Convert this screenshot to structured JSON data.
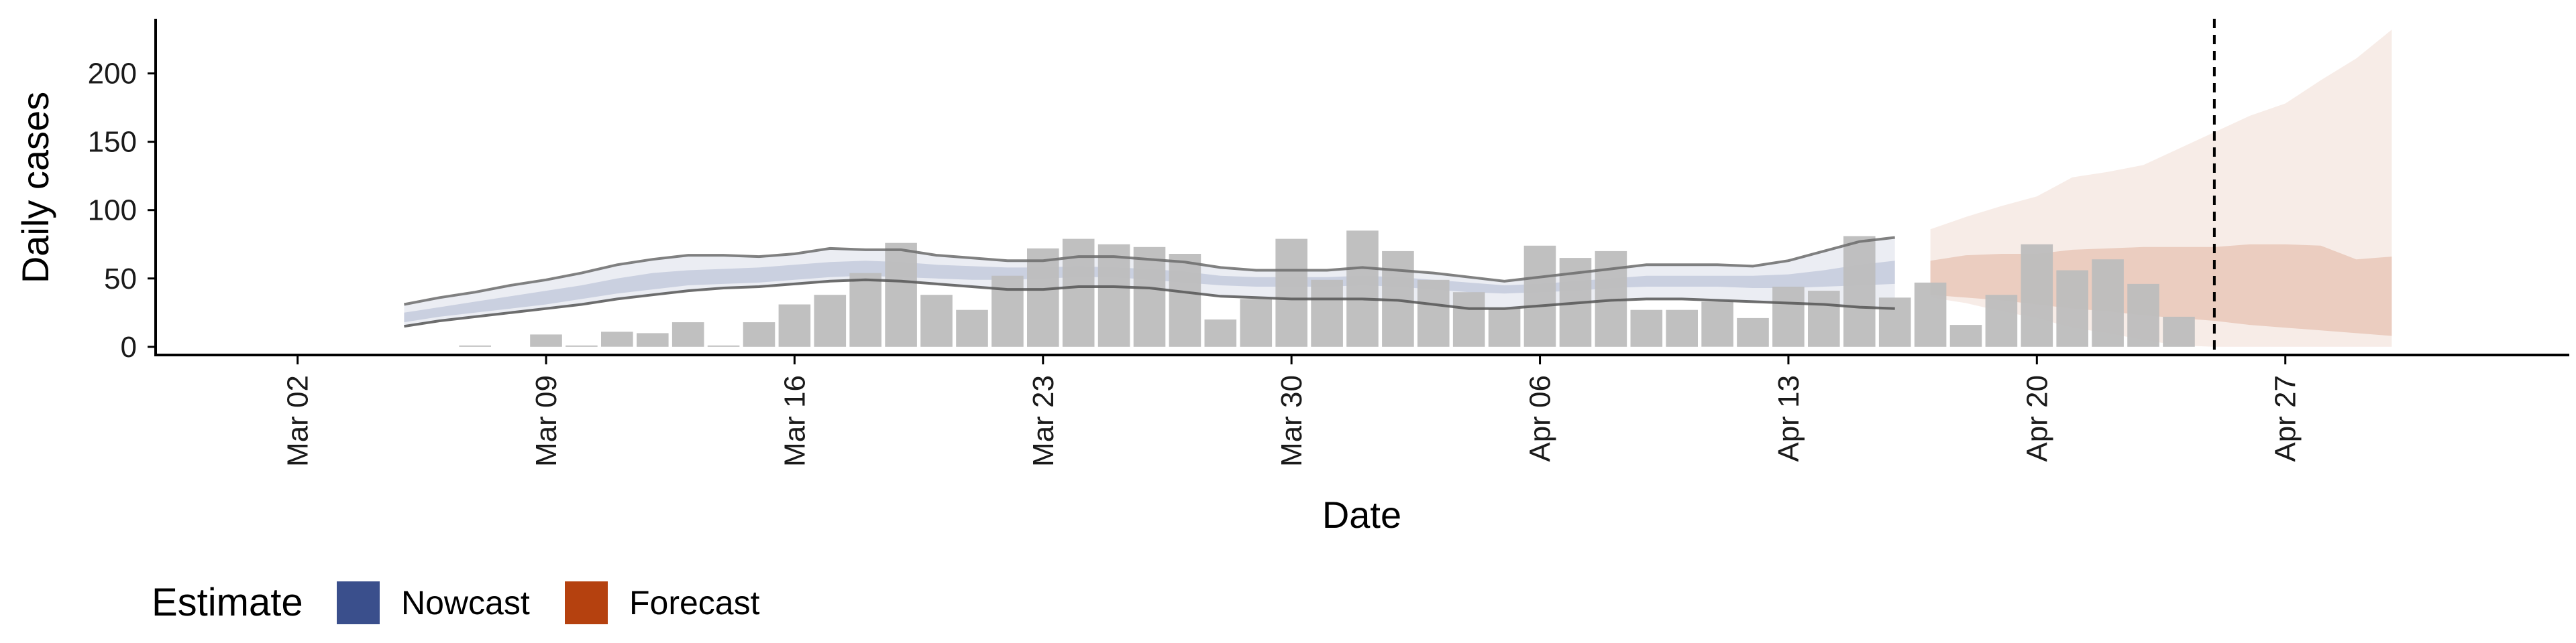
{
  "chart_data": {
    "type": "bar",
    "xlabel": "Date",
    "ylabel": "Daily cases",
    "ylim": [
      -5,
      240
    ],
    "yticks": [
      0,
      50,
      100,
      150,
      200
    ],
    "x_tick_labels": [
      "Mar 02",
      "Mar 09",
      "Mar 16",
      "Mar 23",
      "Mar 30",
      "Apr 06",
      "Apr 13",
      "Apr 20",
      "Apr 27"
    ],
    "x_tick_dates": [
      "2020-03-02",
      "2020-03-09",
      "2020-03-16",
      "2020-03-23",
      "2020-03-30",
      "2020-04-06",
      "2020-04-13",
      "2020-04-20",
      "2020-04-27"
    ],
    "x_range": [
      "2020-02-27",
      "2020-05-05"
    ],
    "reported_cases": {
      "color": "#bdbdbd",
      "dates": [
        "2020-03-07",
        "2020-03-08",
        "2020-03-09",
        "2020-03-10",
        "2020-03-11",
        "2020-03-12",
        "2020-03-13",
        "2020-03-14",
        "2020-03-15",
        "2020-03-16",
        "2020-03-17",
        "2020-03-18",
        "2020-03-19",
        "2020-03-20",
        "2020-03-21",
        "2020-03-22",
        "2020-03-23",
        "2020-03-24",
        "2020-03-25",
        "2020-03-26",
        "2020-03-27",
        "2020-03-28",
        "2020-03-29",
        "2020-03-30",
        "2020-03-31",
        "2020-04-01",
        "2020-04-02",
        "2020-04-03",
        "2020-04-04",
        "2020-04-05",
        "2020-04-06",
        "2020-04-07",
        "2020-04-08",
        "2020-04-09",
        "2020-04-10",
        "2020-04-11",
        "2020-04-12",
        "2020-04-13",
        "2020-04-14",
        "2020-04-15",
        "2020-04-16",
        "2020-04-17",
        "2020-04-18",
        "2020-04-19",
        "2020-04-20",
        "2020-04-21",
        "2020-04-22",
        "2020-04-23",
        "2020-04-24",
        "2020-04-25"
      ],
      "values": [
        1,
        0,
        9,
        1,
        11,
        10,
        18,
        1,
        18,
        31,
        38,
        54,
        76,
        38,
        27,
        52,
        72,
        79,
        75,
        73,
        68,
        20,
        35,
        79,
        49,
        85,
        70,
        49,
        40,
        28,
        74,
        65,
        70,
        27,
        27,
        33,
        21,
        44,
        41,
        81,
        36,
        47,
        16,
        38,
        75,
        56,
        64,
        46,
        22,
        0
      ]
    },
    "series": [
      {
        "name": "Nowcast",
        "color": "#3a4f8c",
        "x": [
          "2020-03-05",
          "2020-03-06",
          "2020-03-07",
          "2020-03-08",
          "2020-03-09",
          "2020-03-10",
          "2020-03-11",
          "2020-03-12",
          "2020-03-13",
          "2020-03-14",
          "2020-03-15",
          "2020-03-16",
          "2020-03-17",
          "2020-03-18",
          "2020-03-19",
          "2020-03-20",
          "2020-03-21",
          "2020-03-22",
          "2020-03-23",
          "2020-03-24",
          "2020-03-25",
          "2020-03-26",
          "2020-03-27",
          "2020-03-28",
          "2020-03-29",
          "2020-03-30",
          "2020-03-31",
          "2020-04-01",
          "2020-04-02",
          "2020-04-03",
          "2020-04-04",
          "2020-04-05",
          "2020-04-06",
          "2020-04-07",
          "2020-04-08",
          "2020-04-09",
          "2020-04-10",
          "2020-04-11",
          "2020-04-12",
          "2020-04-13",
          "2020-04-14",
          "2020-04-15",
          "2020-04-16"
        ],
        "outer_upper": [
          31,
          36,
          40,
          45,
          49,
          54,
          60,
          64,
          67,
          67,
          66,
          68,
          72,
          71,
          71,
          67,
          65,
          63,
          63,
          66,
          66,
          64,
          62,
          58,
          56,
          56,
          56,
          58,
          56,
          54,
          51,
          48,
          51,
          54,
          57,
          60,
          60,
          60,
          59,
          63,
          70,
          77,
          80
        ],
        "inner_upper": [
          25,
          29,
          33,
          37,
          41,
          45,
          50,
          54,
          56,
          57,
          58,
          60,
          62,
          63,
          62,
          60,
          59,
          58,
          58,
          59,
          58,
          57,
          55,
          52,
          51,
          51,
          51,
          52,
          51,
          49,
          47,
          45,
          46,
          48,
          50,
          52,
          52,
          52,
          52,
          53,
          56,
          60,
          63
        ],
        "inner_lower": [
          18,
          22,
          25,
          28,
          31,
          35,
          39,
          42,
          45,
          46,
          47,
          49,
          51,
          52,
          51,
          50,
          49,
          49,
          50,
          51,
          51,
          49,
          47,
          45,
          44,
          44,
          44,
          45,
          44,
          42,
          40,
          39,
          40,
          41,
          43,
          44,
          44,
          44,
          43,
          43,
          44,
          45,
          46
        ],
        "outer_lower": [
          15,
          19,
          22,
          25,
          28,
          31,
          35,
          38,
          41,
          43,
          44,
          46,
          48,
          49,
          48,
          46,
          44,
          42,
          42,
          44,
          44,
          43,
          40,
          37,
          36,
          35,
          35,
          35,
          34,
          31,
          28,
          28,
          30,
          32,
          34,
          35,
          35,
          34,
          33,
          32,
          31,
          29,
          28
        ]
      },
      {
        "name": "Forecast",
        "color": "#b5410f",
        "x": [
          "2020-04-17",
          "2020-04-18",
          "2020-04-19",
          "2020-04-20",
          "2020-04-21",
          "2020-04-22",
          "2020-04-23",
          "2020-04-24",
          "2020-04-25",
          "2020-04-26",
          "2020-04-27",
          "2020-04-28",
          "2020-04-29",
          "2020-04-30"
        ],
        "outer_upper": [
          86,
          95,
          103,
          110,
          124,
          128,
          133,
          145,
          157,
          169,
          178,
          195,
          211,
          232
        ],
        "inner_upper": [
          63,
          67,
          68,
          68,
          71,
          72,
          73,
          73,
          73,
          75,
          75,
          74,
          64,
          66
        ],
        "inner_lower": [
          38,
          36,
          34,
          31,
          28,
          26,
          23,
          21,
          19,
          16,
          14,
          12,
          10,
          8
        ],
        "outer_lower": [
          36,
          32,
          26,
          21,
          14,
          10,
          5,
          1,
          0,
          0,
          0,
          0,
          0,
          0
        ]
      }
    ],
    "vline_date": "2020-04-25",
    "legend": {
      "title": "Estimate",
      "position": "bottom-left",
      "entries": [
        {
          "label": "Nowcast",
          "color": "#3a4f8c"
        },
        {
          "label": "Forecast",
          "color": "#b5410f"
        }
      ]
    },
    "grid": false
  }
}
